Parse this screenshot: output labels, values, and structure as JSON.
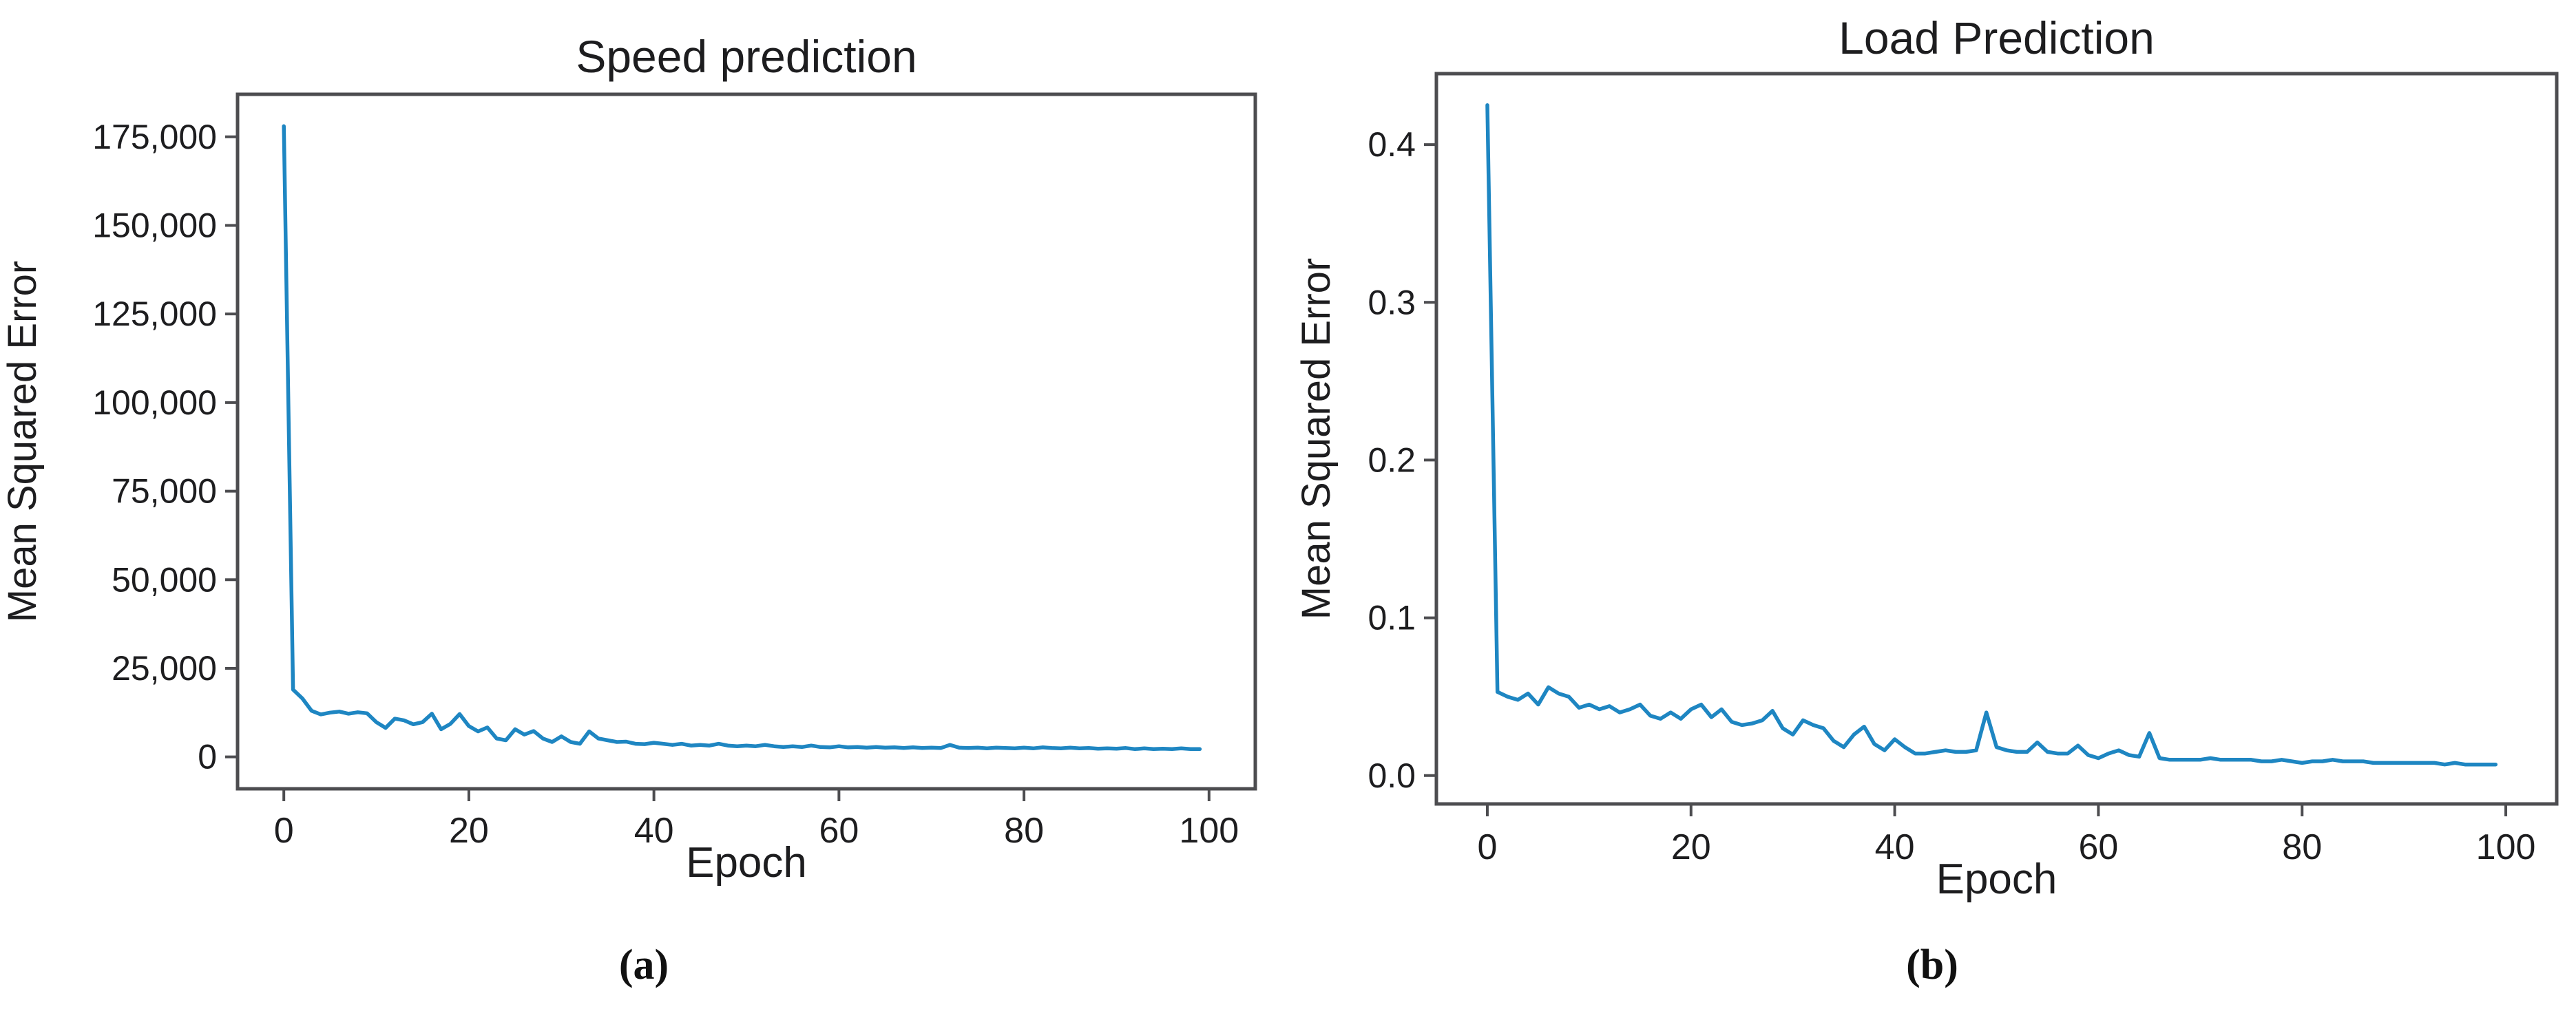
{
  "figure": {
    "background_color": "#ffffff",
    "line_color": "#1e86c2",
    "axis_color": "#4d4d50",
    "text_color": "#1d1d1f"
  },
  "chart_data": [
    {
      "type": "line",
      "title": "Speed prediction",
      "xlabel": "Epoch",
      "ylabel": "Mean Squared Error",
      "caption": "(a)",
      "legend": "none",
      "grid": false,
      "x_start": 0,
      "x_step": 1,
      "xlim": [
        -5,
        105
      ],
      "ylim": [
        -9000,
        187000
      ],
      "xticks": [
        0,
        20,
        40,
        60,
        80,
        100
      ],
      "xtick_labels": [
        "0",
        "20",
        "40",
        "60",
        "80",
        "100"
      ],
      "yticks": [
        0,
        25000,
        50000,
        75000,
        100000,
        125000,
        150000,
        175000
      ],
      "ytick_labels": [
        "0",
        "25,000",
        "50,000",
        "75,000",
        "100,000",
        "125,000",
        "150,000",
        "175,000"
      ],
      "values": [
        178000,
        19000,
        16500,
        13000,
        12000,
        12500,
        12800,
        12200,
        12600,
        12300,
        9800,
        8200,
        10800,
        10300,
        9200,
        9800,
        12200,
        7800,
        9300,
        12100,
        8700,
        7200,
        8300,
        5200,
        4700,
        7800,
        6300,
        7300,
        5200,
        4200,
        5800,
        4200,
        3700,
        7200,
        5200,
        4700,
        4200,
        4300,
        3700,
        3600,
        4000,
        3700,
        3400,
        3700,
        3200,
        3400,
        3200,
        3700,
        3200,
        3000,
        3200,
        3000,
        3400,
        3000,
        2800,
        3000,
        2800,
        3200,
        2800,
        2700,
        3000,
        2700,
        2800,
        2600,
        2800,
        2600,
        2700,
        2500,
        2700,
        2500,
        2600,
        2500,
        3400,
        2600,
        2500,
        2600,
        2400,
        2600,
        2500,
        2400,
        2600,
        2400,
        2700,
        2500,
        2400,
        2600,
        2400,
        2500,
        2300,
        2400,
        2300,
        2500,
        2200,
        2400,
        2200,
        2300,
        2200,
        2400,
        2200,
        2200
      ]
    },
    {
      "type": "line",
      "title": "Load Prediction",
      "xlabel": "Epoch",
      "ylabel": "Mean Squared Error",
      "caption": "(b)",
      "legend": "none",
      "grid": false,
      "x_start": 0,
      "x_step": 1,
      "xlim": [
        -5,
        105
      ],
      "ylim": [
        -0.018,
        0.445
      ],
      "xticks": [
        0,
        20,
        40,
        60,
        80,
        100
      ],
      "xtick_labels": [
        "0",
        "20",
        "40",
        "60",
        "80",
        "100"
      ],
      "yticks": [
        0.0,
        0.1,
        0.2,
        0.3,
        0.4
      ],
      "ytick_labels": [
        "0.0",
        "0.1",
        "0.2",
        "0.3",
        "0.4"
      ],
      "values": [
        0.425,
        0.053,
        0.05,
        0.048,
        0.052,
        0.045,
        0.056,
        0.052,
        0.05,
        0.043,
        0.045,
        0.042,
        0.044,
        0.04,
        0.042,
        0.045,
        0.038,
        0.036,
        0.04,
        0.036,
        0.042,
        0.045,
        0.037,
        0.042,
        0.034,
        0.032,
        0.033,
        0.035,
        0.041,
        0.03,
        0.026,
        0.035,
        0.032,
        0.03,
        0.022,
        0.018,
        0.026,
        0.031,
        0.02,
        0.016,
        0.023,
        0.018,
        0.014,
        0.014,
        0.015,
        0.016,
        0.015,
        0.015,
        0.016,
        0.04,
        0.018,
        0.016,
        0.015,
        0.015,
        0.021,
        0.015,
        0.014,
        0.014,
        0.019,
        0.013,
        0.011,
        0.014,
        0.016,
        0.013,
        0.012,
        0.027,
        0.011,
        0.01,
        0.01,
        0.01,
        0.01,
        0.011,
        0.01,
        0.01,
        0.01,
        0.01,
        0.009,
        0.009,
        0.01,
        0.009,
        0.008,
        0.009,
        0.009,
        0.01,
        0.009,
        0.009,
        0.009,
        0.008,
        0.008,
        0.008,
        0.008,
        0.008,
        0.008,
        0.008,
        0.007,
        0.008,
        0.007,
        0.007,
        0.007,
        0.007
      ]
    }
  ]
}
